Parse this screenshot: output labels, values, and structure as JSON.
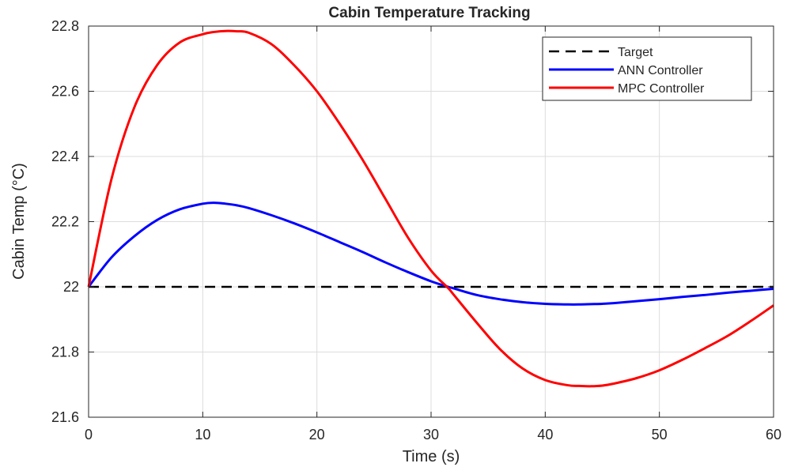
{
  "chart_data": {
    "type": "line",
    "title": "Cabin Temperature Tracking",
    "xlabel": "Time (s)",
    "ylabel": "Cabin Temp (°C)",
    "xlim": [
      0,
      60
    ],
    "ylim": [
      21.6,
      22.8
    ],
    "xticks": [
      0,
      10,
      20,
      30,
      40,
      50,
      60
    ],
    "yticks": [
      21.6,
      21.8,
      22,
      22.2,
      22.4,
      22.6,
      22.8
    ],
    "xtick_labels": [
      "0",
      "10",
      "20",
      "30",
      "40",
      "50",
      "60"
    ],
    "ytick_labels": [
      "21.6",
      "21.8",
      "22",
      "22.2",
      "22.4",
      "22.6",
      "22.8"
    ],
    "grid": true,
    "legend_position": "top-right",
    "x": [
      0,
      2,
      4,
      6,
      8,
      10,
      11,
      12,
      13,
      14,
      16,
      18,
      20,
      22,
      24,
      26,
      28,
      30,
      31.5,
      32,
      34,
      36,
      38,
      40,
      42,
      43,
      44,
      45,
      46,
      48,
      50,
      52,
      54,
      56,
      58,
      60
    ],
    "series": [
      {
        "name": "Target",
        "color": "#000000",
        "dash": true,
        "values": [
          22,
          22,
          22,
          22,
          22,
          22,
          22,
          22,
          22,
          22,
          22,
          22,
          22,
          22,
          22,
          22,
          22,
          22,
          22,
          22,
          22,
          22,
          22,
          22,
          22,
          22,
          22,
          22,
          22,
          22,
          22,
          22,
          22,
          22,
          22,
          22
        ]
      },
      {
        "name": "ANN Controller",
        "color": "#0000ff",
        "dash": false,
        "values": [
          22.0,
          22.09,
          22.155,
          22.205,
          22.238,
          22.255,
          22.258,
          22.255,
          22.25,
          22.242,
          22.22,
          22.195,
          22.167,
          22.137,
          22.107,
          22.075,
          22.045,
          22.017,
          22.0,
          21.995,
          21.975,
          21.962,
          21.953,
          21.948,
          21.946,
          21.946,
          21.947,
          21.948,
          21.95,
          21.956,
          21.962,
          21.969,
          21.975,
          21.982,
          21.988,
          21.994
        ]
      },
      {
        "name": "MPC Controller",
        "color": "#ff0000",
        "dash": false,
        "values": [
          22.0,
          22.33,
          22.55,
          22.68,
          22.75,
          22.775,
          22.782,
          22.785,
          22.784,
          22.78,
          22.745,
          22.68,
          22.6,
          22.5,
          22.39,
          22.27,
          22.15,
          22.05,
          21.996,
          21.975,
          21.89,
          21.81,
          21.75,
          21.714,
          21.698,
          21.696,
          21.695,
          21.697,
          21.703,
          21.72,
          21.744,
          21.776,
          21.812,
          21.85,
          21.895,
          21.943
        ]
      }
    ]
  }
}
